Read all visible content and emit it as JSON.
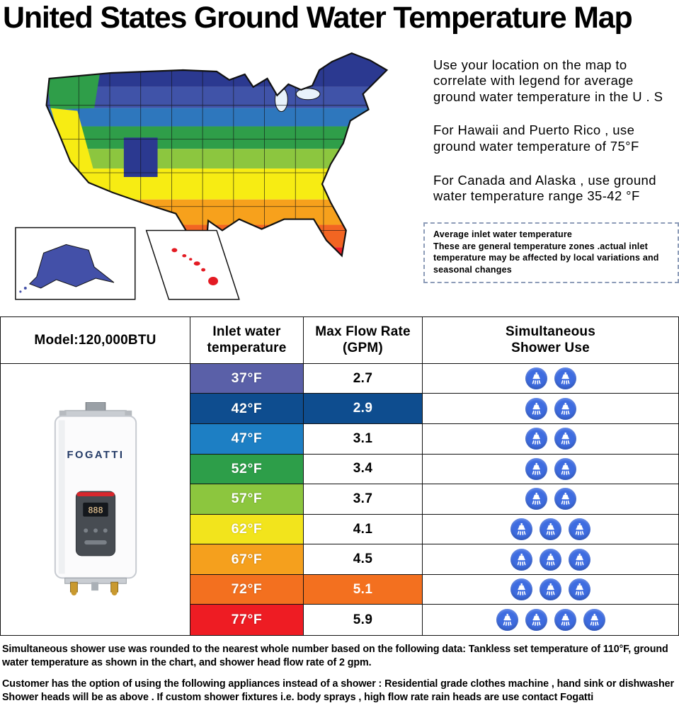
{
  "page": {
    "title": "United States Ground Water Temperature Map"
  },
  "map": {
    "instructions": [
      "Use your location on the map to correlate with legend for average ground water temperature in the U . S",
      "For Hawaii and Puerto Rico , use ground water temperature of 75°F",
      "For Canada and Alaska , use ground water temperature range 35-42 °F"
    ],
    "note": {
      "title": "Average inlet water temperature",
      "body": "These are general temperature zones .actual inlet temperature may be affected by local variations and seasonal changes"
    }
  },
  "table": {
    "headers": {
      "model": "Model:120,000BTU",
      "inlet": "Inlet water\ntemperature",
      "flow": "Max Flow Rate\n(GPM)",
      "shower": "Simultaneous\nShower Use"
    },
    "brand": "FOGATTI",
    "heater_display": "888",
    "rows": [
      {
        "temp": "37°F",
        "color": "#5a60a8",
        "flow": "2.7",
        "flow_bg": "",
        "showers": 2
      },
      {
        "temp": "42°F",
        "color": "#0e4d8f",
        "flow": "2.9",
        "flow_bg": "#0e4d8f",
        "showers": 2
      },
      {
        "temp": "47°F",
        "color": "#1d7fc4",
        "flow": "3.1",
        "flow_bg": "",
        "showers": 2
      },
      {
        "temp": "52°F",
        "color": "#2d9e49",
        "flow": "3.4",
        "flow_bg": "",
        "showers": 2
      },
      {
        "temp": "57°F",
        "color": "#8cc63e",
        "flow": "3.7",
        "flow_bg": "",
        "showers": 2
      },
      {
        "temp": "62°F",
        "color": "#f2e41c",
        "flow": "4.1",
        "flow_bg": "",
        "showers": 3
      },
      {
        "temp": "67°F",
        "color": "#f5a01d",
        "flow": "4.5",
        "flow_bg": "",
        "showers": 3
      },
      {
        "temp": "72°F",
        "color": "#f3701f",
        "flow": "5.1",
        "flow_bg": "#f3701f",
        "showers": 3
      },
      {
        "temp": "77°F",
        "color": "#ee1c23",
        "flow": "5.9",
        "flow_bg": "",
        "showers": 4
      }
    ]
  },
  "footnotes": [
    "Simultaneous shower use was rounded to the nearest whole number based on the following data: Tankless set temperature of 110°F, ground water temperature as shown in the chart, and shower head flow rate of 2 gpm.",
    "Customer has the option of using the following appliances instead of a shower : Residential grade clothes machine , hand sink or dishwasher Shower heads will be as above . If custom shower fixtures i.e. body sprays , high flow rate rain heads are use contact Fogatti"
  ]
}
